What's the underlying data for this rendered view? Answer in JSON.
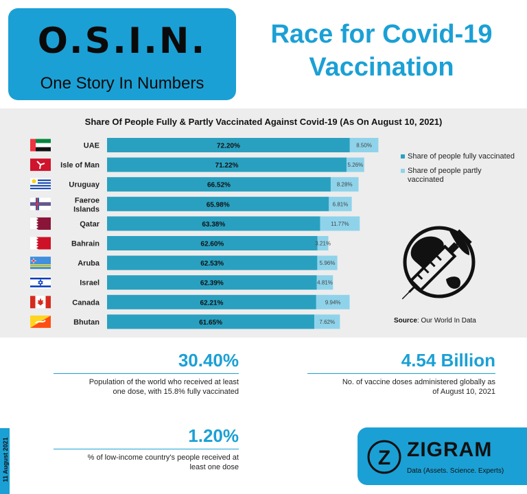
{
  "header": {
    "brand": "O.S.I.N.",
    "brand_sub": "One Story In Numbers",
    "title_line1": "Race for Covid-19",
    "title_line2": "Vaccination"
  },
  "colors": {
    "accent": "#1ba0d5",
    "fully": "#2aa0c0",
    "partly": "#8fd3ea",
    "panel": "#ededed"
  },
  "chart_data": {
    "type": "bar",
    "orientation": "horizontal",
    "stacked": true,
    "title": "Share Of People Fully & Partly Vaccinated Against Covid-19 (As On August 10, 2021)",
    "categories": [
      "UAE",
      "Isle of Man",
      "Uruguay",
      "Faeroe Islands",
      "Qatar",
      "Bahrain",
      "Aruba",
      "Israel",
      "Canada",
      "Bhutan"
    ],
    "series": [
      {
        "name": "Share of people fully vaccinated",
        "values": [
          72.2,
          71.22,
          66.52,
          65.98,
          63.38,
          62.6,
          62.53,
          62.39,
          62.21,
          61.65
        ],
        "labels": [
          "72.20%",
          "71.22%",
          "66.52%",
          "65.98%",
          "63.38%",
          "62.60%",
          "62.53%",
          "62.39%",
          "62.21%",
          "61.65%"
        ]
      },
      {
        "name": "Share of people partly vaccinated",
        "values": [
          8.5,
          5.26,
          8.28,
          6.81,
          11.77,
          3.21,
          5.96,
          4.81,
          9.94,
          7.62
        ],
        "labels": [
          "8.50%",
          "5.26%",
          "8.28%",
          "6.81%",
          "11.77%",
          "3.21%",
          "5.96%",
          "4.81%",
          "9.94%",
          "7.62%"
        ]
      }
    ],
    "legend_placement": "right",
    "grid": false,
    "flags": [
      "uae-flag",
      "isle-of-man-flag",
      "uruguay-flag",
      "faeroe-islands-flag",
      "qatar-flag",
      "bahrain-flag",
      "aruba-flag",
      "israel-flag",
      "canada-flag",
      "bhutan-flag"
    ]
  },
  "chart_icon": "globe-syringe-icon",
  "source": {
    "label": "Source",
    "text": ": Our World In Data"
  },
  "stats": [
    {
      "value": "30.40%",
      "desc_line1": "Population of the world who received at least",
      "desc_line2": "one dose, with 15.8% fully vaccinated"
    },
    {
      "value": "4.54 Billion",
      "desc_line1": "No. of vaccine doses administered globally as",
      "desc_line2": "of August 10, 2021"
    },
    {
      "value": "1.20%",
      "desc_line1": "% of low-income country's people received at",
      "desc_line2": "least one dose"
    }
  ],
  "date": "11 August 2021",
  "footer": {
    "brand": "ZIGRAM",
    "tagline": "Data (Assets. Science. Experts)",
    "logo_letter": "Z"
  }
}
